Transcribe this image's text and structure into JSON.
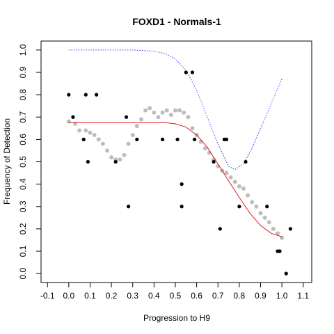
{
  "chart_data": {
    "type": "scatter",
    "title": "FOXD1 - Normals-1",
    "xlabel": "Progression to H9",
    "ylabel": "Frequency of Detection",
    "xlim": [
      -0.13,
      1.14
    ],
    "ylim": [
      -0.04,
      1.04
    ],
    "x_ticks": [
      "-0.1",
      "0.0",
      "0.1",
      "0.2",
      "0.3",
      "0.4",
      "0.5",
      "0.6",
      "0.7",
      "0.8",
      "0.9",
      "1.0",
      "1.1"
    ],
    "y_ticks": [
      "0.0",
      "0.1",
      "0.2",
      "0.3",
      "0.4",
      "0.5",
      "0.6",
      "0.7",
      "0.8",
      "0.9",
      "1.0"
    ],
    "grid": false,
    "legend": "none",
    "series": [
      {
        "style": "points",
        "color": "#000000",
        "x": [
          0.0,
          0.02,
          0.07,
          0.09,
          0.08,
          0.13,
          0.22,
          0.27,
          0.28,
          0.32,
          0.44,
          0.51,
          0.53,
          0.53,
          0.55,
          0.58,
          0.59,
          0.68,
          0.71,
          0.73,
          0.74,
          0.8,
          0.83,
          0.93,
          0.98,
          0.99,
          1.02,
          1.04
        ],
        "y": [
          0.8,
          0.7,
          0.6,
          0.5,
          0.8,
          0.8,
          0.5,
          0.7,
          0.3,
          0.6,
          0.6,
          0.6,
          0.3,
          0.4,
          0.9,
          0.9,
          0.6,
          0.5,
          0.2,
          0.6,
          0.6,
          0.3,
          0.5,
          0.3,
          0.1,
          0.1,
          0.0,
          0.2
        ]
      },
      {
        "style": "smoothed-points",
        "color": "#bdbdbd",
        "x": [
          0.0,
          0.03,
          0.05,
          0.08,
          0.1,
          0.12,
          0.14,
          0.16,
          0.18,
          0.2,
          0.22,
          0.24,
          0.26,
          0.28,
          0.3,
          0.32,
          0.34,
          0.36,
          0.38,
          0.4,
          0.42,
          0.44,
          0.46,
          0.48,
          0.5,
          0.52,
          0.54,
          0.56,
          0.58,
          0.6,
          0.62,
          0.64,
          0.66,
          0.68,
          0.7,
          0.72,
          0.74,
          0.76,
          0.78,
          0.8,
          0.82,
          0.84,
          0.86,
          0.88,
          0.9,
          0.92,
          0.94,
          0.96,
          0.98,
          1.0
        ],
        "y": [
          0.68,
          0.67,
          0.64,
          0.64,
          0.63,
          0.62,
          0.6,
          0.58,
          0.55,
          0.52,
          0.51,
          0.51,
          0.53,
          0.58,
          0.62,
          0.66,
          0.69,
          0.73,
          0.74,
          0.72,
          0.7,
          0.72,
          0.73,
          0.71,
          0.73,
          0.73,
          0.72,
          0.7,
          0.65,
          0.62,
          0.59,
          0.56,
          0.54,
          0.51,
          0.48,
          0.46,
          0.45,
          0.43,
          0.41,
          0.39,
          0.38,
          0.35,
          0.32,
          0.3,
          0.27,
          0.25,
          0.23,
          0.2,
          0.18,
          0.16
        ]
      },
      {
        "style": "line",
        "color": "#e41a1c",
        "x": [
          0.0,
          0.1,
          0.2,
          0.3,
          0.4,
          0.45,
          0.5,
          0.55,
          0.6,
          0.65,
          0.7,
          0.75,
          0.8,
          0.85,
          0.9,
          0.95,
          1.0
        ],
        "y": [
          0.675,
          0.675,
          0.675,
          0.675,
          0.675,
          0.675,
          0.67,
          0.655,
          0.62,
          0.565,
          0.49,
          0.415,
          0.34,
          0.27,
          0.215,
          0.18,
          0.165
        ]
      },
      {
        "style": "dotted-line",
        "color": "#3333ff",
        "x": [
          0.0,
          0.1,
          0.2,
          0.3,
          0.4,
          0.45,
          0.5,
          0.55,
          0.6,
          0.65,
          0.7,
          0.75,
          0.78,
          0.82,
          0.86,
          0.9,
          0.95,
          1.0
        ],
        "y": [
          1.0,
          1.0,
          1.0,
          1.0,
          0.995,
          0.985,
          0.96,
          0.91,
          0.82,
          0.7,
          0.58,
          0.48,
          0.465,
          0.49,
          0.56,
          0.65,
          0.76,
          0.87
        ]
      }
    ]
  }
}
